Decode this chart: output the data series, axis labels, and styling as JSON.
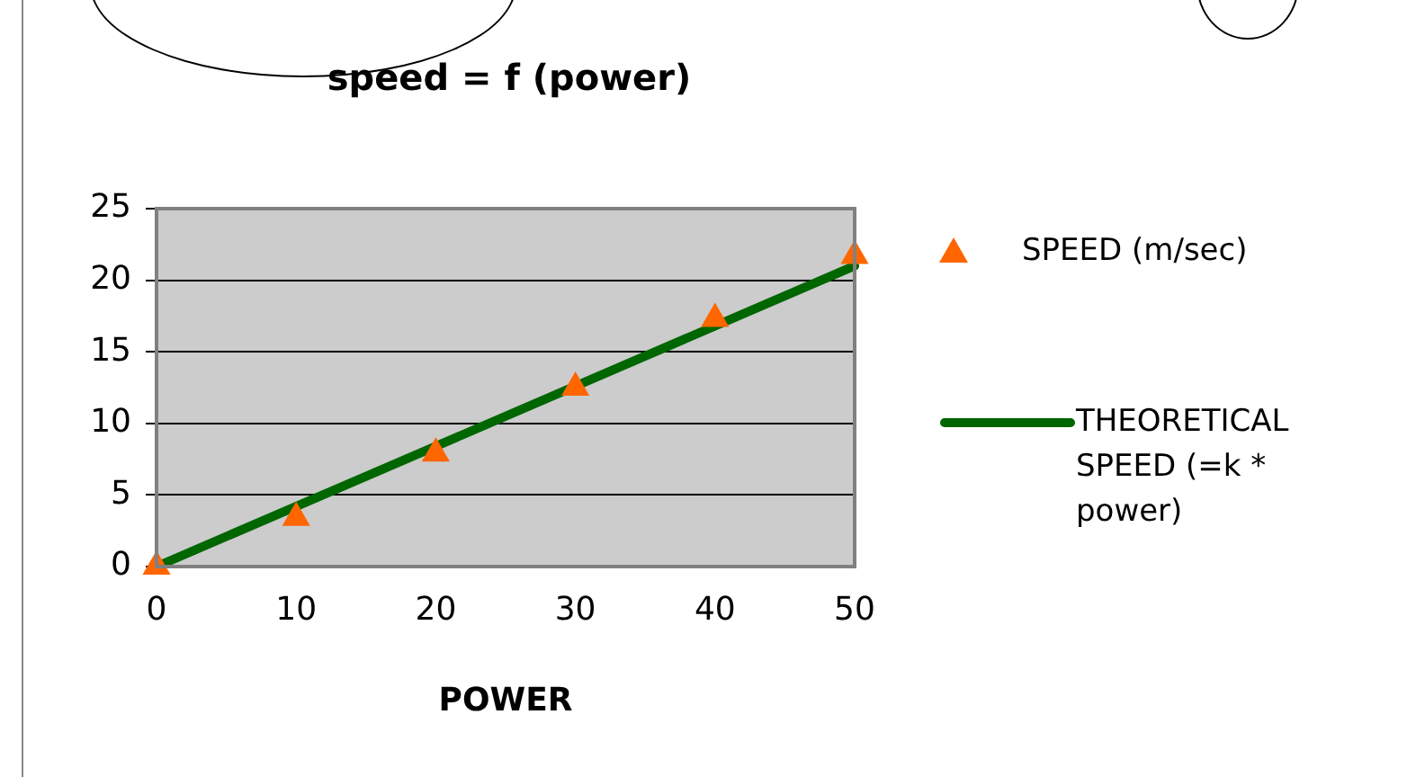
{
  "chart_data": {
    "type": "scatter",
    "title": "speed = f (power)",
    "xlabel": "POWER",
    "x": [
      0,
      10,
      20,
      30,
      40,
      50
    ],
    "series": [
      {
        "name": "SPEED (m/sec)",
        "type": "scatter",
        "color": "#ff6600",
        "marker": "triangle",
        "values": [
          0,
          3.4,
          7.9,
          12.5,
          17.3,
          21.7
        ]
      },
      {
        "name": "THEORETICAL SPEED (=k * power)",
        "type": "line",
        "color": "#006600",
        "marker": "none",
        "line_style": "solid",
        "x": [
          0,
          50
        ],
        "values": [
          0,
          21
        ]
      }
    ],
    "xlim": [
      0,
      50
    ],
    "xticks": [
      0,
      10,
      20,
      30,
      40,
      50
    ],
    "ylim": [
      0,
      25
    ],
    "yticks": [
      0,
      5,
      10,
      15,
      20,
      25
    ],
    "grid": "y",
    "legend": "right"
  }
}
